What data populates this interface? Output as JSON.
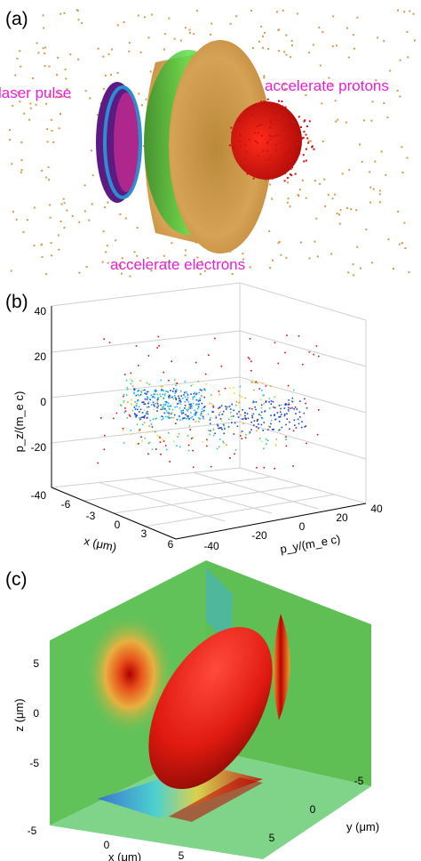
{
  "panels": {
    "a": {
      "label": "(a)",
      "annotations": {
        "laser": "laser pulse",
        "protons": "accelerate protons",
        "electrons": "accelerate electrons"
      },
      "colors": {
        "cloud": "#d49a4a",
        "green": "#4bd13a",
        "red": "#e0140e",
        "purple": "#6b1a8c"
      }
    },
    "b": {
      "label": "(b)",
      "z_ticks": [
        "40",
        "20",
        "0",
        "-20",
        "-40"
      ],
      "x_ticks": [
        "-6",
        "-3",
        "0",
        "3",
        "6"
      ],
      "y_ticks": [
        "-40",
        "-20",
        "0",
        "20",
        "40"
      ],
      "z_label": "p_z/(m_e c)",
      "x_label": "x (μm)",
      "y_label": "p_y/(m_e c)"
    },
    "c": {
      "label": "(c)",
      "z_ticks": [
        "5",
        "0",
        "-5"
      ],
      "x_ticks": [
        "-5",
        "0",
        "5"
      ],
      "y_ticks": [
        "-5",
        "0",
        "5"
      ],
      "z_label": "z (μm)",
      "x_label": "x (μm)",
      "y_label": "y (μm)",
      "colors": {
        "wall": "#5fbf5a",
        "ellipsoid": "#e31a10"
      }
    }
  }
}
